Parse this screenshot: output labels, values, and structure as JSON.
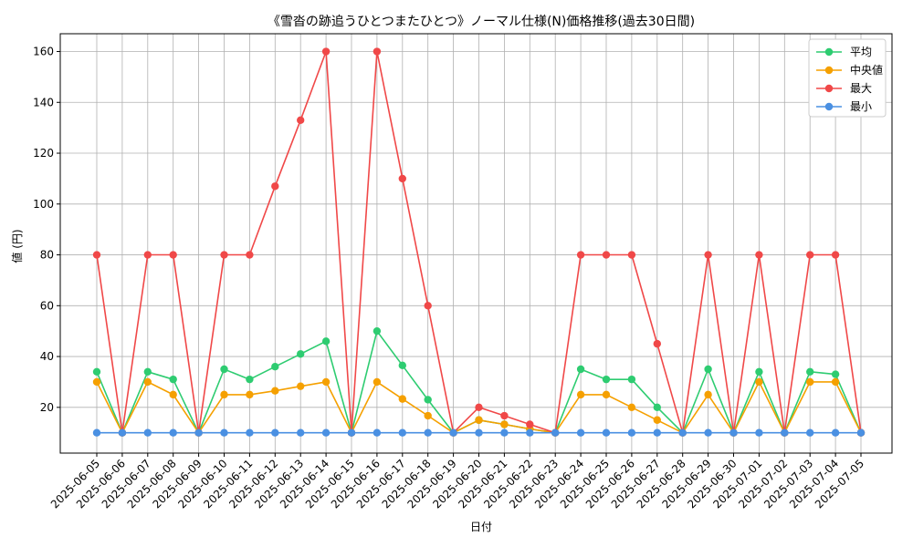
{
  "chart_data": {
    "type": "line",
    "title": "《雪沓の跡追うひとつまたひとつ》ノーマル仕様(N)価格推移(過去30日間)",
    "xlabel": "日付",
    "ylabel": "値 (円)",
    "ylim": [
      2,
      167
    ],
    "yticks": [
      20,
      40,
      60,
      80,
      100,
      120,
      140,
      160
    ],
    "grid": true,
    "legend_position": "top-right",
    "categories": [
      "2025-06-05",
      "2025-06-06",
      "2025-06-07",
      "2025-06-08",
      "2025-06-09",
      "2025-06-10",
      "2025-06-11",
      "2025-06-12",
      "2025-06-13",
      "2025-06-14",
      "2025-06-15",
      "2025-06-16",
      "2025-06-17",
      "2025-06-18",
      "2025-06-19",
      "2025-06-20",
      "2025-06-21",
      "2025-06-22",
      "2025-06-23",
      "2025-06-24",
      "2025-06-25",
      "2025-06-26",
      "2025-06-27",
      "2025-06-28",
      "2025-06-29",
      "2025-06-30",
      "2025-07-01",
      "2025-07-02",
      "2025-07-03",
      "2025-07-04",
      "2025-07-05"
    ],
    "series": [
      {
        "name": "平均",
        "color": "#2ecc71",
        "values": [
          34,
          10,
          34,
          31,
          10,
          35,
          31,
          36,
          41,
          46,
          10,
          50,
          36.5,
          23,
          10,
          15,
          13.3,
          11.5,
          10,
          35,
          31,
          31,
          20,
          10,
          35,
          10,
          34,
          10,
          34,
          33,
          10
        ]
      },
      {
        "name": "中央値",
        "color": "#f5a000",
        "values": [
          30,
          10,
          30,
          25,
          10,
          25,
          25,
          26.5,
          28.3,
          30,
          10,
          30,
          23.3,
          16.7,
          10,
          15,
          13.3,
          11.5,
          10,
          25,
          25,
          20,
          15,
          10,
          25,
          10,
          30,
          10,
          30,
          30,
          10
        ]
      },
      {
        "name": "最大",
        "color": "#f04848",
        "values": [
          80,
          10,
          80,
          80,
          10,
          80,
          80,
          107,
          133,
          160,
          10,
          160,
          110,
          60,
          10,
          20,
          16.7,
          13.3,
          10,
          80,
          80,
          80,
          45,
          10,
          80,
          10,
          80,
          10,
          80,
          80,
          10
        ]
      },
      {
        "name": "最小",
        "color": "#4a90e2",
        "values": [
          10,
          10,
          10,
          10,
          10,
          10,
          10,
          10,
          10,
          10,
          10,
          10,
          10,
          10,
          10,
          10,
          10,
          10,
          10,
          10,
          10,
          10,
          10,
          10,
          10,
          10,
          10,
          10,
          10,
          10,
          10
        ]
      }
    ]
  }
}
